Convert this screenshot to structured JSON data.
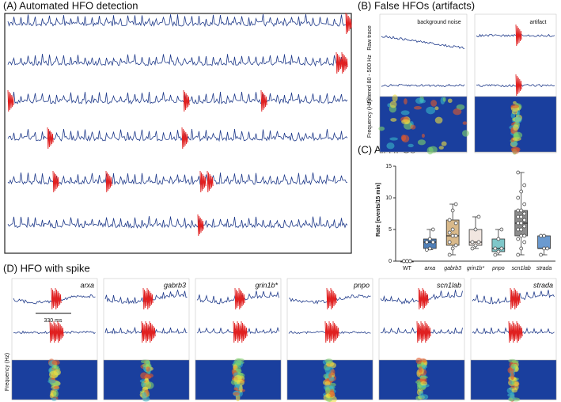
{
  "panel_a": {
    "title": "(A) Automated HFO detection"
  },
  "panel_b": {
    "title": "(B) False HFOs (artifacts)",
    "columns": [
      "background noise",
      "artifact"
    ],
    "rows": [
      "Raw trace",
      "Filtered 80 - 500 Hz",
      "Frequency (Hz)"
    ]
  },
  "panel_d": {
    "title": "(D) HFO with spike",
    "genes": [
      "arxa",
      "gabrb3",
      "grin1b*",
      "pnpo",
      "scn1lab",
      "strada"
    ],
    "scale": "330 ms",
    "ylabel": "Frequency (Hz)"
  },
  "chart_data": {
    "type": "box",
    "title": "(C) All HFOs",
    "ylabel": "Rate [events/15 min]",
    "categories": [
      "WT",
      "arxa",
      "gabrb3",
      "grin1b*",
      "pnpo",
      "scn1lab",
      "strada"
    ],
    "ylim": [
      0,
      15
    ],
    "yticks": [
      0,
      5,
      10,
      15
    ],
    "boxes": [
      {
        "color": "#a0522d",
        "min": 0,
        "q1": 0,
        "median": 0,
        "q3": 0,
        "max": 0,
        "points": [
          0,
          0,
          0,
          0,
          0,
          0
        ]
      },
      {
        "color": "#4f7fb8",
        "min": 1.8,
        "q1": 2,
        "median": 3,
        "q3": 3.5,
        "max": 5,
        "points": [
          1.8,
          2,
          3,
          3,
          3.5,
          5
        ]
      },
      {
        "color": "#d9b98a",
        "min": 1,
        "q1": 2.5,
        "median": 4,
        "q3": 6.5,
        "max": 9,
        "points": [
          1,
          2,
          2.5,
          3,
          4,
          4,
          4.5,
          5,
          6,
          6.5,
          8,
          9
        ]
      },
      {
        "color": "#f1e6e0",
        "min": 2,
        "q1": 2.5,
        "median": 3,
        "q3": 5,
        "max": 7,
        "points": [
          2,
          2.5,
          3,
          3,
          5,
          7
        ]
      },
      {
        "color": "#7fc7c9",
        "min": 1,
        "q1": 1.5,
        "median": 2,
        "q3": 3.5,
        "max": 5,
        "points": [
          1,
          1.5,
          2,
          2,
          3.5,
          5
        ]
      },
      {
        "color": "#8c8c8c",
        "min": 1,
        "q1": 4,
        "median": 6,
        "q3": 8,
        "max": 14,
        "points": [
          1,
          2,
          3,
          3.5,
          4,
          4,
          5,
          5,
          5.5,
          6,
          6,
          6.5,
          7,
          7,
          7.5,
          8,
          8,
          9,
          10,
          11,
          12,
          14
        ]
      },
      {
        "color": "#6b9ad0",
        "min": 1,
        "q1": 2,
        "median": 2,
        "q3": 4,
        "max": 4,
        "points": [
          1,
          2,
          2,
          4,
          4
        ]
      }
    ]
  }
}
